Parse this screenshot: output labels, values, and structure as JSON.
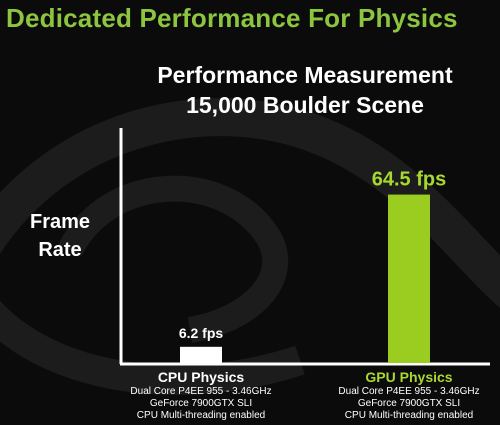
{
  "header": {
    "title": "Dedicated Performance For Physics"
  },
  "colors": {
    "accent_green": "#8cc63f",
    "cpu_bar": "#ffffff",
    "gpu_bar": "#9acd20",
    "background": "#0b0b0b"
  },
  "chart_data": {
    "type": "bar",
    "title": [
      "Performance Measurement",
      "15,000 Boulder Scene"
    ],
    "ylabel": [
      "Frame",
      "Rate"
    ],
    "xlabel": "",
    "ylim": [
      0,
      90
    ],
    "grid": false,
    "categories": [
      "CPU Physics",
      "GPU Physics"
    ],
    "values": [
      6.2,
      64.5
    ],
    "value_labels": [
      "6.2 fps",
      "64.5 fps"
    ],
    "category_colors": [
      "#ffffff",
      "#9acd20"
    ],
    "category_label_colors": [
      "#ffffff",
      "#a8d830"
    ],
    "category_details": [
      [
        "Dual Core P4EE 955 - 3.46GHz",
        "GeForce 7900GTX SLI",
        "CPU Multi-threading enabled"
      ],
      [
        "Dual Core P4EE 955 - 3.46GHz",
        "GeForce 7900GTX SLI",
        "CPU Multi-threading enabled"
      ]
    ]
  }
}
